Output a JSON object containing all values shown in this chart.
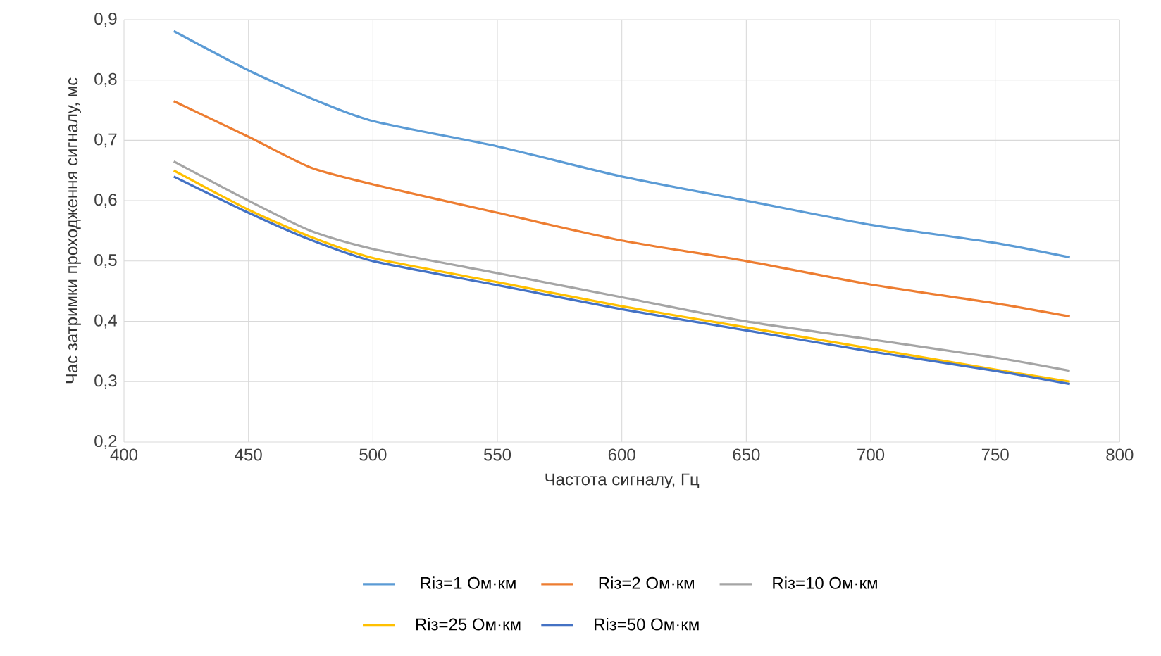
{
  "chart_data": {
    "type": "line",
    "xlabel": "Частота сигналу, Гц",
    "ylabel": "Час затримки проходження сигналу, мс",
    "xlim": [
      400,
      800
    ],
    "xticks": [
      400,
      450,
      500,
      550,
      600,
      650,
      700,
      750,
      800
    ],
    "ylim": [
      0.2,
      0.9
    ],
    "yticks": [
      {
        "value": 0.2,
        "label": "0,2"
      },
      {
        "value": 0.3,
        "label": "0,3"
      },
      {
        "value": 0.4,
        "label": "0,4"
      },
      {
        "value": 0.5,
        "label": "0,5"
      },
      {
        "value": 0.6,
        "label": "0,6"
      },
      {
        "value": 0.7,
        "label": "0,7"
      },
      {
        "value": 0.8,
        "label": "0,8"
      },
      {
        "value": 0.9,
        "label": "0,9"
      }
    ],
    "grid": true,
    "legend": "bottom",
    "x": [
      420,
      450,
      475,
      500,
      550,
      600,
      650,
      700,
      750,
      780
    ],
    "series": [
      {
        "name": "Rіз=1 Ом·км",
        "color": "#5b9bd5",
        "values": [
          0.881,
          0.816,
          0.77,
          0.732,
          0.69,
          0.64,
          0.6,
          0.56,
          0.53,
          0.506
        ]
      },
      {
        "name": "Rіз=2 Ом·км",
        "color": "#ed7d31",
        "values": [
          0.765,
          0.706,
          0.655,
          0.627,
          0.58,
          0.534,
          0.5,
          0.461,
          0.43,
          0.408
        ]
      },
      {
        "name": "Rіз=10 Ом·км",
        "color": "#a5a5a5",
        "values": [
          0.665,
          0.6,
          0.55,
          0.52,
          0.48,
          0.44,
          0.4,
          0.37,
          0.34,
          0.318
        ]
      },
      {
        "name": "Rіз=25 Ом·км",
        "color": "#ffc000",
        "values": [
          0.65,
          0.585,
          0.54,
          0.505,
          0.465,
          0.425,
          0.39,
          0.355,
          0.32,
          0.3
        ]
      },
      {
        "name": "Rіз=50 Ом·км",
        "color": "#4472c4",
        "values": [
          0.64,
          0.58,
          0.535,
          0.5,
          0.46,
          0.42,
          0.385,
          0.35,
          0.318,
          0.296
        ]
      }
    ]
  }
}
